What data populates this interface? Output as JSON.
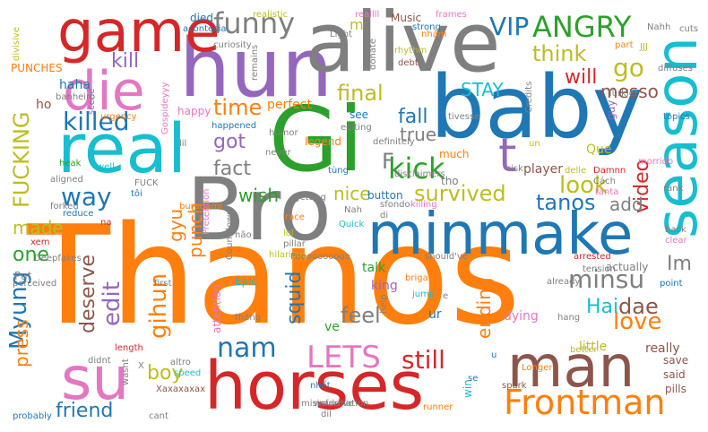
{
  "palette": {
    "blue": "#1f77b4",
    "orange": "#ff7f0e",
    "green": "#2ca02c",
    "red": "#d62728",
    "purple": "#9467bd",
    "brown": "#8c564b",
    "pink": "#e377c2",
    "gray": "#7f7f7f",
    "olive": "#bcbd22",
    "cyan": "#17becf"
  },
  "words": [
    {
      "text": "Thanos",
      "color": "orange"
    },
    {
      "text": "Bro",
      "color": "gray"
    },
    {
      "text": "Gi",
      "color": "green"
    },
    {
      "text": "baby",
      "color": "blue"
    },
    {
      "text": "hun",
      "color": "purple"
    },
    {
      "text": "alive",
      "color": "gray"
    },
    {
      "text": "real",
      "color": "cyan"
    },
    {
      "text": "minmake",
      "color": "blue"
    },
    {
      "text": "horses",
      "color": "red"
    },
    {
      "text": "man",
      "color": "brown"
    },
    {
      "text": "game",
      "color": "red"
    },
    {
      "text": "su",
      "color": "pink"
    },
    {
      "text": "season",
      "color": "cyan"
    },
    {
      "text": "die",
      "color": "pink"
    },
    {
      "text": "Frontman",
      "color": "orange"
    },
    {
      "text": "kick",
      "color": "green"
    },
    {
      "text": "t",
      "color": "purple"
    },
    {
      "text": "funny",
      "color": "gray"
    },
    {
      "text": "ANGRY",
      "color": "green"
    },
    {
      "text": "VIP",
      "color": "blue"
    },
    {
      "text": "killed",
      "color": "blue"
    },
    {
      "text": "go",
      "color": "olive"
    },
    {
      "text": "FUCKING",
      "color": "olive"
    },
    {
      "text": "way",
      "color": "blue"
    },
    {
      "text": "Myung",
      "color": "blue"
    },
    {
      "text": "nam",
      "color": "blue"
    },
    {
      "text": "LETS",
      "color": "pink"
    },
    {
      "text": "still",
      "color": "red"
    },
    {
      "text": "minsu",
      "color": "gray"
    },
    {
      "text": "love",
      "color": "orange"
    },
    {
      "text": "final",
      "color": "olive"
    },
    {
      "text": "survived",
      "color": "olive"
    },
    {
      "text": "video",
      "color": "red"
    },
    {
      "text": "look",
      "color": "olive"
    },
    {
      "text": "tanos",
      "color": "blue"
    },
    {
      "text": "edit",
      "color": "purple"
    },
    {
      "text": "gihun",
      "color": "orange"
    },
    {
      "text": "squid",
      "color": "blue"
    },
    {
      "text": "deserve",
      "color": "brown"
    },
    {
      "text": "boy",
      "color": "olive"
    },
    {
      "text": "friend",
      "color": "blue"
    },
    {
      "text": "kill",
      "color": "purple"
    },
    {
      "text": "time",
      "color": "orange"
    },
    {
      "text": "got",
      "color": "purple"
    },
    {
      "text": "fact",
      "color": "gray"
    },
    {
      "text": "think",
      "color": "olive"
    },
    {
      "text": "will",
      "color": "red"
    },
    {
      "text": "messo",
      "color": "brown"
    },
    {
      "text": "fall",
      "color": "blue"
    },
    {
      "text": "true",
      "color": "gray"
    },
    {
      "text": "STAY",
      "color": "cyan"
    },
    {
      "text": "feel",
      "color": "gray"
    },
    {
      "text": "ending",
      "color": "orange"
    },
    {
      "text": "dae",
      "color": "brown"
    },
    {
      "text": "Hai",
      "color": "cyan"
    },
    {
      "text": "Im",
      "color": "gray"
    },
    {
      "text": "press",
      "color": "orange"
    },
    {
      "text": "made",
      "color": "olive"
    },
    {
      "text": "one",
      "color": "green"
    },
    {
      "text": "punch",
      "color": "orange"
    },
    {
      "text": "gyu",
      "color": "orange"
    },
    {
      "text": "wish",
      "color": "green"
    },
    {
      "text": "nice",
      "color": "olive"
    },
    {
      "text": "add",
      "color": "gray"
    },
    {
      "text": "haha",
      "color": "blue"
    },
    {
      "text": "PUNCHES",
      "color": "orange"
    },
    {
      "text": "ho",
      "color": "brown"
    },
    {
      "text": "F",
      "color": "gray"
    },
    {
      "text": "talk",
      "color": "green"
    },
    {
      "text": "king",
      "color": "purple"
    },
    {
      "text": "ve",
      "color": "green"
    },
    {
      "text": "dying",
      "color": "pink"
    },
    {
      "text": "little",
      "color": "olive"
    },
    {
      "text": "really",
      "color": "brown"
    },
    {
      "text": "save",
      "color": "brown"
    },
    {
      "text": "said",
      "color": "brown"
    },
    {
      "text": "pills",
      "color": "brown"
    },
    {
      "text": "Put",
      "color": "gray"
    },
    {
      "text": "perfect",
      "color": "orange"
    },
    {
      "text": "see",
      "color": "blue"
    },
    {
      "text": "Music",
      "color": "brown"
    },
    {
      "text": "m",
      "color": "olive"
    },
    {
      "text": "died",
      "color": "blue"
    },
    {
      "text": "realistic",
      "color": "olive"
    },
    {
      "text": "reallll",
      "color": "pink"
    },
    {
      "text": "frames",
      "color": "pink"
    },
    {
      "text": "Nahh",
      "color": "gray"
    },
    {
      "text": "cuts",
      "color": "gray"
    },
    {
      "text": "acontecia",
      "color": "blue"
    },
    {
      "text": "curiosity",
      "color": "gray"
    },
    {
      "text": "Light",
      "color": "gray"
    },
    {
      "text": "nhảm",
      "color": "orange"
    },
    {
      "text": "rhythm",
      "color": "olive"
    },
    {
      "text": "debt",
      "color": "brown"
    },
    {
      "text": "part",
      "color": "orange"
    },
    {
      "text": "JJJ",
      "color": "olive"
    },
    {
      "text": "divisive",
      "color": "olive"
    },
    {
      "text": "donate",
      "color": "gray"
    },
    {
      "text": "diffuses",
      "color": "gray"
    },
    {
      "text": "Türkler",
      "color": "gray"
    },
    {
      "text": "remains",
      "color": "gray"
    },
    {
      "text": "scene",
      "color": "purple"
    },
    {
      "text": "banheiro",
      "color": "gray"
    },
    {
      "text": "urgency",
      "color": "orange"
    },
    {
      "text": "happy",
      "color": "pink"
    },
    {
      "text": "tivesse",
      "color": "gray"
    },
    {
      "text": "topics",
      "color": "blue"
    },
    {
      "text": "Credits",
      "color": "gray"
    },
    {
      "text": "guy",
      "color": "purple"
    },
    {
      "text": "happened",
      "color": "blue"
    },
    {
      "text": "humor",
      "color": "gray"
    },
    {
      "text": "editing",
      "color": "gray"
    },
    {
      "text": "legend",
      "color": "orange"
    },
    {
      "text": "definitely",
      "color": "gray"
    },
    {
      "text": "heak",
      "color": "green"
    },
    {
      "text": "well",
      "color": "cyan"
    },
    {
      "text": "Gospideyyy",
      "color": "pink"
    },
    {
      "text": "lil",
      "color": "gray"
    },
    {
      "text": "never",
      "color": "gray"
    },
    {
      "text": "much",
      "color": "orange"
    },
    {
      "text": "risk",
      "color": "gray"
    },
    {
      "text": "un",
      "color": "olive"
    },
    {
      "text": "Que",
      "color": "olive"
    },
    {
      "text": "morrido",
      "color": "pink"
    },
    {
      "text": "aligned",
      "color": "gray"
    },
    {
      "text": "FUCK",
      "color": "gray"
    },
    {
      "text": "tôi",
      "color": "blue"
    },
    {
      "text": "buradami",
      "color": "orange"
    },
    {
      "text": "tùng",
      "color": "blue"
    },
    {
      "text": "disclaimers",
      "color": "gray"
    },
    {
      "text": "tho",
      "color": "gray"
    },
    {
      "text": "player",
      "color": "brown"
    },
    {
      "text": "delle",
      "color": "olive"
    },
    {
      "text": "Damnn",
      "color": "red"
    },
    {
      "text": "Cách",
      "color": "gray"
    },
    {
      "text": "tanta",
      "color": "pink"
    },
    {
      "text": "rank",
      "color": "gray"
    },
    {
      "text": "forked",
      "color": "gray"
    },
    {
      "text": "reduce",
      "color": "blue"
    },
    {
      "text": "na",
      "color": "red"
    },
    {
      "text": "getting",
      "color": "gray"
    },
    {
      "text": "Nah",
      "color": "gray"
    },
    {
      "text": "sfondo",
      "color": "gray"
    },
    {
      "text": "killing",
      "color": "pink"
    },
    {
      "text": "di",
      "color": "gray"
    },
    {
      "text": "button",
      "color": "blue"
    },
    {
      "text": "race",
      "color": "orange"
    },
    {
      "text": "Pretention",
      "color": "pink"
    },
    {
      "text": "Countdown",
      "color": "gray"
    },
    {
      "text": "não",
      "color": "gray"
    },
    {
      "text": "lol",
      "color": "olive"
    },
    {
      "text": "pillar",
      "color": "gray"
    },
    {
      "text": "Quick",
      "color": "cyan"
    },
    {
      "text": "back",
      "color": "gray"
    },
    {
      "text": "clear",
      "color": "pink"
    },
    {
      "text": "xem",
      "color": "red"
    },
    {
      "text": "Deepfakes",
      "color": "gray"
    },
    {
      "text": "hilarious",
      "color": "olive"
    },
    {
      "text": "Poooooooooo",
      "color": "gray"
    },
    {
      "text": "should've",
      "color": "gray"
    },
    {
      "text": "arrested",
      "color": "red"
    },
    {
      "text": "tension",
      "color": "gray"
    },
    {
      "text": "actually",
      "color": "gray"
    },
    {
      "text": "perceived",
      "color": "gray"
    },
    {
      "text": "first",
      "color": "gray"
    },
    {
      "text": "Epic",
      "color": "cyan"
    },
    {
      "text": "help",
      "color": "gray"
    },
    {
      "text": "briga",
      "color": "orange"
    },
    {
      "text": "jump",
      "color": "cyan"
    },
    {
      "text": "e",
      "color": "gray"
    },
    {
      "text": "ur",
      "color": "blue"
    },
    {
      "text": "already",
      "color": "gray"
    },
    {
      "text": "point",
      "color": "blue"
    },
    {
      "text": "hang",
      "color": "gray"
    },
    {
      "text": "attention",
      "color": "pink"
    },
    {
      "text": "thắng",
      "color": "gray"
    },
    {
      "text": "better",
      "color": "olive"
    },
    {
      "text": "length",
      "color": "red"
    },
    {
      "text": "didnt",
      "color": "gray"
    },
    {
      "text": "altro",
      "color": "gray"
    },
    {
      "text": "wasnt",
      "color": "gray"
    },
    {
      "text": "X",
      "color": "gray"
    },
    {
      "text": "speed",
      "color": "cyan"
    },
    {
      "text": "Xaxaxaxax",
      "color": "brown"
    },
    {
      "text": "nhất",
      "color": "blue"
    },
    {
      "text": "misinformation",
      "color": "gray"
    },
    {
      "text": "spark",
      "color": "brown"
    },
    {
      "text": "Longer",
      "color": "orange"
    },
    {
      "text": "win",
      "color": "cyan"
    },
    {
      "text": "se",
      "color": "blue"
    },
    {
      "text": "probably",
      "color": "blue"
    },
    {
      "text": "cant",
      "color": "gray"
    },
    {
      "text": "dil",
      "color": "gray"
    },
    {
      "text": "would've",
      "color": "gray"
    },
    {
      "text": "runner",
      "color": "orange"
    },
    {
      "text": "strong",
      "color": "blue"
    },
    {
      "text": "u",
      "color": "blue"
    }
  ]
}
